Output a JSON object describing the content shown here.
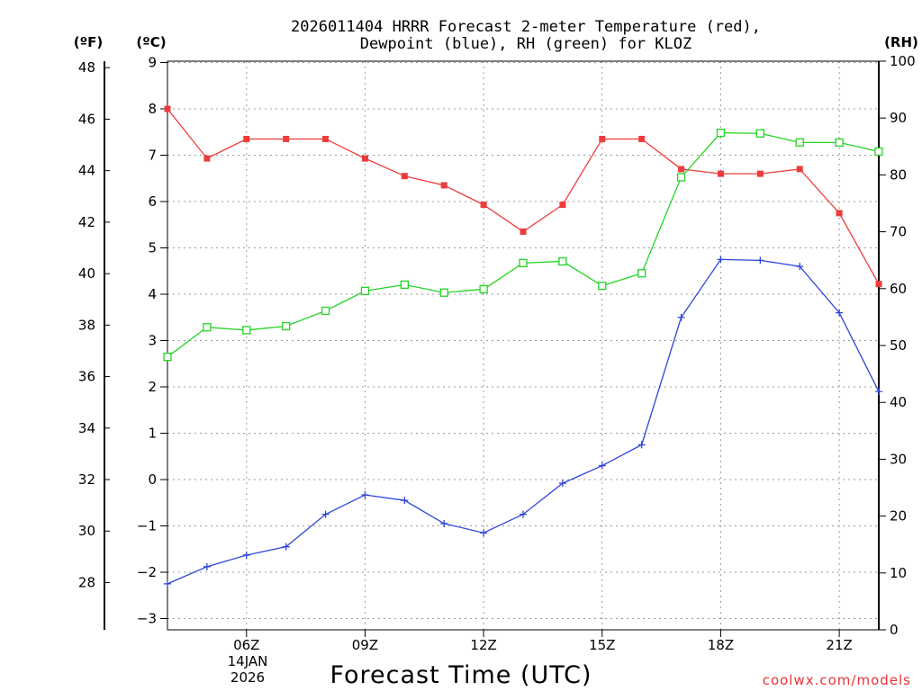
{
  "chart_data": {
    "type": "line",
    "title": "2026011404 HRRR Forecast 2-meter Temperature (red),",
    "title_line2": "Dewpoint (blue), RH (green) for KLOZ",
    "xlabel": "Forecast Time (UTC)",
    "credit": "coolwx.com/models",
    "left_axis_label": "(ºF)",
    "inner_axis_label": "(ºC)",
    "right_axis_label": "(RH)",
    "date_label_day": "14JAN",
    "date_label_year": "2026",
    "x_hours": [
      4,
      5,
      6,
      7,
      8,
      9,
      10,
      11,
      12,
      13,
      14,
      15,
      16,
      17,
      18,
      19,
      20,
      21,
      22
    ],
    "x_range": [
      4,
      22
    ],
    "x_tick_values": [
      6,
      9,
      12,
      15,
      18,
      21
    ],
    "x_tick_labels": [
      "06Z",
      "09Z",
      "12Z",
      "15Z",
      "18Z",
      "21Z"
    ],
    "celsius_axis": {
      "range": [
        -3,
        9
      ],
      "ticks": [
        9,
        8,
        7,
        6,
        5,
        4,
        3,
        2,
        1,
        0,
        -1,
        -2,
        -3
      ],
      "tick_labels": [
        "9",
        "8",
        "7",
        "6",
        "5",
        "4",
        "3",
        "2",
        "1",
        "0",
        "−1",
        "−2",
        "−3"
      ]
    },
    "fahrenheit_axis": {
      "ticks": [
        48,
        46,
        44,
        42,
        40,
        38,
        36,
        34,
        32,
        30,
        28
      ],
      "tick_labels": [
        "48",
        "46",
        "44",
        "42",
        "40",
        "38",
        "36",
        "34",
        "32",
        "30",
        "28"
      ]
    },
    "rh_axis": {
      "range": [
        0,
        100
      ],
      "ticks": [
        100,
        90,
        80,
        70,
        60,
        50,
        40,
        30,
        20,
        10,
        0
      ],
      "tick_labels": [
        "100",
        "90",
        "80",
        "70",
        "60",
        "50",
        "40",
        "30",
        "20",
        "10",
        "0"
      ]
    },
    "series": [
      {
        "name": "Temperature",
        "axis": "celsius",
        "color": "#ee3b3b",
        "marker": "filled-square",
        "values": [
          8.0,
          6.93,
          7.35,
          7.35,
          7.35,
          6.93,
          6.55,
          6.35,
          5.93,
          5.35,
          5.93,
          7.35,
          7.35,
          6.7,
          6.6,
          6.6,
          6.7,
          5.75,
          4.22
        ]
      },
      {
        "name": "Dewpoint",
        "axis": "celsius",
        "color": "#2f45d8",
        "marker": "plus",
        "values": [
          -2.25,
          -1.88,
          -1.63,
          -1.45,
          -0.75,
          -0.33,
          -0.45,
          -0.95,
          -1.15,
          -0.75,
          -0.08,
          0.3,
          0.75,
          3.5,
          4.75,
          4.73,
          4.6,
          3.6,
          1.9
        ]
      },
      {
        "name": "RH",
        "axis": "rh",
        "color": "#22d422",
        "marker": "open-square",
        "values": [
          48,
          53.2,
          52.7,
          53.4,
          56.1,
          59.6,
          60.7,
          59.3,
          59.9,
          64.5,
          64.8,
          60.5,
          62.7,
          79.6,
          87.4,
          87.3,
          85.7,
          85.7,
          84.1
        ]
      }
    ]
  }
}
